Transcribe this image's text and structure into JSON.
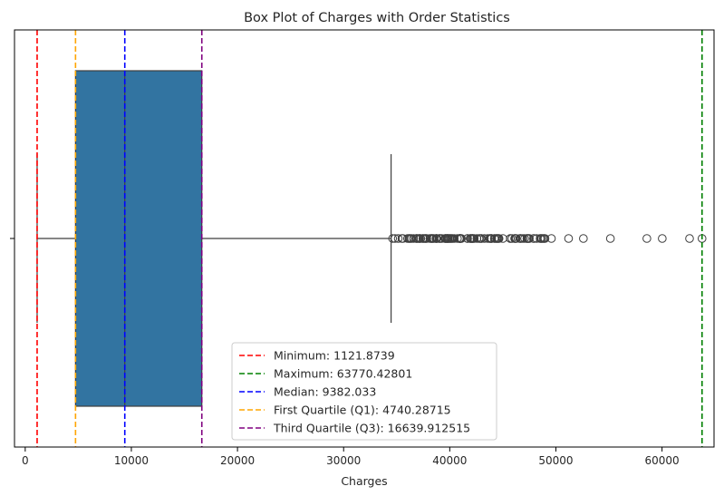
{
  "chart_data": {
    "type": "box",
    "title": "Box Plot of Charges with Order Statistics",
    "xlabel": "Charges",
    "ylabel": "",
    "xlim": [
      -1010,
      64900
    ],
    "xticks": [
      0,
      10000,
      20000,
      30000,
      40000,
      50000,
      60000
    ],
    "xtick_labels": [
      "0",
      "10000",
      "20000",
      "30000",
      "40000",
      "50000",
      "60000"
    ],
    "grid": false,
    "legend_position": "lower-center",
    "box": {
      "color": "#3274a1",
      "q1": 4740.28715,
      "median": 9382.033,
      "q3": 16639.912515,
      "whisker_low": 1121.8739,
      "whisker_high": 34472.841,
      "outliers": [
        34617.8,
        34838.9,
        35147.5,
        35491.6,
        35585.6,
        36021.0,
        36149.5,
        36197.7,
        36307.8,
        36397.6,
        36580.3,
        36837.5,
        36898.7,
        36910.6,
        37079.4,
        37133.9,
        37165.2,
        37270.2,
        37465.3,
        37484.4,
        37607.5,
        37701.9,
        37742.6,
        37829.7,
        38126.2,
        38245.6,
        38282.7,
        38344.6,
        38415.5,
        38511.6,
        38709.2,
        38711.0,
        38746.4,
        38792.7,
        38998.5,
        39047.3,
        39125.3,
        39241.4,
        39556.5,
        39597.4,
        39611.8,
        39725.5,
        39727.6,
        39774.3,
        39836.5,
        39871.7,
        39983.4,
        40003.3,
        40103.9,
        40182.2,
        40273.6,
        40419.0,
        40720.6,
        40904.2,
        40932.4,
        40941.3,
        40974.2,
        41034.2,
        41097.2,
        41661.6,
        41676.1,
        41919.1,
        41949.2,
        41999.5,
        42111.7,
        42112.2,
        42124.5,
        42211.1,
        42303.7,
        42560.4,
        42760.5,
        42856.8,
        42969.9,
        42983.5,
        43254.4,
        43578.9,
        43753.3,
        43813.9,
        43896.4,
        43921.2,
        43943.9,
        44202.7,
        44260.7,
        44400.4,
        44423.8,
        44501.4,
        44585.5,
        44641.2,
        45008.9,
        45702.0,
        45710.2,
        45863.2,
        46113.5,
        46151.1,
        46200.9,
        46255.1,
        46599.1,
        46661.4,
        46718.2,
        46889.3,
        47055.5,
        47269.9,
        47291.1,
        47305.3,
        47403.9,
        47462.9,
        47496.5,
        47896.8,
        47928.0,
        48173.4,
        48517.6,
        48549.2,
        48673.6,
        48675.5,
        48824.5,
        48885.1,
        48970.2,
        49577.7,
        51194.6,
        52590.8,
        55135.4,
        58571.1,
        60021.4,
        62592.9,
        63770.4
      ]
    },
    "reference_lines": [
      {
        "label": "Minimum: 1121.8739",
        "value": 1121.8739,
        "color": "#ff0000"
      },
      {
        "label": "Maximum: 63770.42801",
        "value": 63770.42801,
        "color": "#008000"
      },
      {
        "label": "Median: 9382.033",
        "value": 9382.033,
        "color": "#0000ff"
      },
      {
        "label": "First Quartile (Q1): 4740.28715",
        "value": 4740.28715,
        "color": "#ffa500"
      },
      {
        "label": "Third Quartile (Q3): 16639.912515",
        "value": 16639.912515,
        "color": "#800080"
      }
    ]
  }
}
